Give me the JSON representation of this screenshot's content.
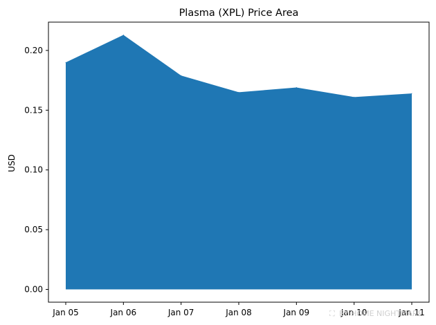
{
  "chart_data": {
    "type": "area",
    "title": "Plasma (XPL) Price Area",
    "xlabel": "",
    "ylabel": "USD",
    "categories": [
      "Jan 05",
      "Jan 06",
      "Jan 07",
      "Jan 08",
      "Jan 09",
      "Jan 10",
      "Jan 11"
    ],
    "values": [
      0.19,
      0.213,
      0.179,
      0.165,
      0.169,
      0.161,
      0.164
    ],
    "ylim": [
      -0.0107,
      0.2237
    ],
    "yticks": [
      0.0,
      0.05,
      0.1,
      0.15,
      0.2
    ],
    "ytick_labels": [
      "0.00",
      "0.05",
      "0.10",
      "0.15",
      "0.20"
    ],
    "grid": false,
    "legend": "none",
    "color": "#1f77b4"
  },
  "watermark": {
    "text": "BY HOME NIGHTMARE"
  }
}
